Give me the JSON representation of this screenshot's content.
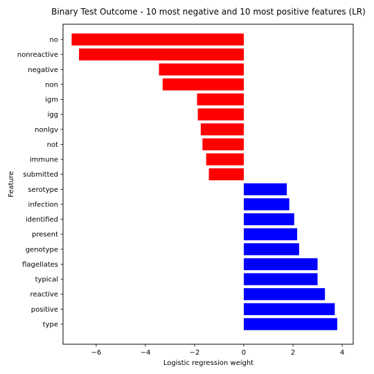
{
  "chart_data": {
    "type": "bar",
    "orientation": "horizontal",
    "title": "Binary Test Outcome - 10 most negative and 10 most positive features (LR)",
    "xlabel": "Logistic regression weight",
    "ylabel": "Feature",
    "xlim": [
      -7.35,
      4.45
    ],
    "xticks": [
      -6,
      -4,
      -2,
      0,
      2,
      4
    ],
    "xtick_labels": [
      "−6",
      "−4",
      "−2",
      "0",
      "2",
      "4"
    ],
    "grid": false,
    "legend": "none",
    "categories": [
      "no",
      "nonreactive",
      "negative",
      "non",
      "igm",
      "igg",
      "nonlgv",
      "not",
      "immune",
      "submitted",
      "serotype",
      "infection",
      "identified",
      "present",
      "genotype",
      "flagellates",
      "typical",
      "reactive",
      "positive",
      "type"
    ],
    "values": [
      -7.0,
      -6.7,
      -3.45,
      -3.3,
      -1.9,
      -1.87,
      -1.75,
      -1.68,
      -1.53,
      -1.42,
      1.75,
      1.85,
      2.05,
      2.17,
      2.25,
      3.0,
      3.0,
      3.3,
      3.7,
      3.8
    ],
    "colors": {
      "negative": "#ff0000",
      "positive": "#0000ff"
    }
  }
}
